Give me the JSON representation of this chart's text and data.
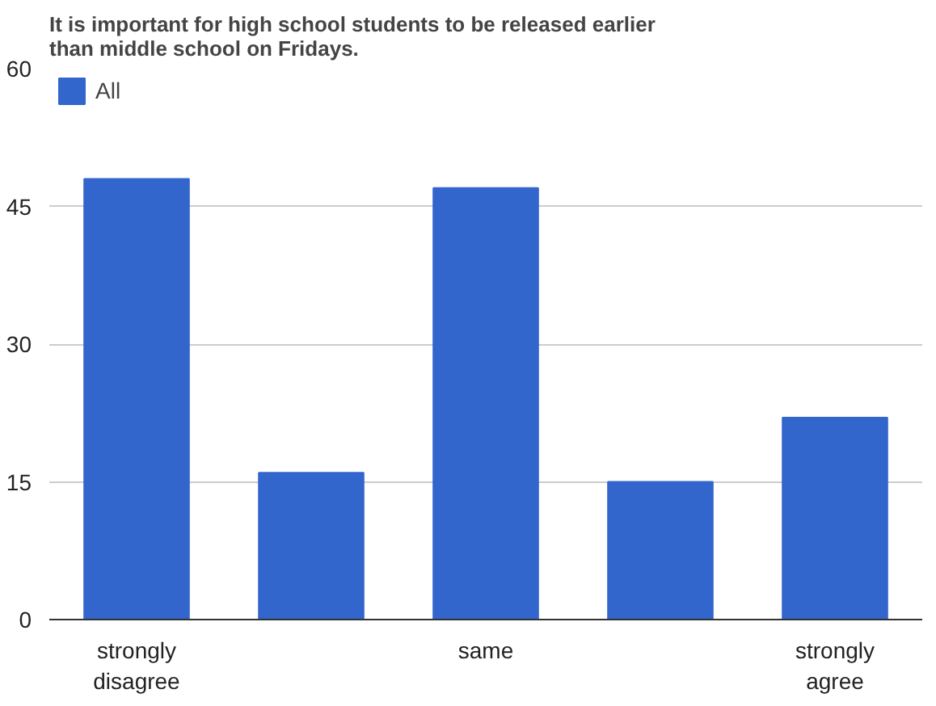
{
  "chart_data": {
    "type": "bar",
    "title": "It is important for high school students to be released earlier\nthan middle school on Fridays.",
    "categories": [
      "strongly disagree",
      null,
      "same",
      null,
      "strongly agree"
    ],
    "series": [
      {
        "name": "All",
        "color": "#3366cc",
        "values": [
          48,
          16,
          47,
          15,
          22
        ]
      }
    ],
    "ylim": [
      0,
      60
    ],
    "yticks": [
      0,
      15,
      30,
      45,
      60
    ],
    "grid": "y",
    "legend": "top left"
  }
}
